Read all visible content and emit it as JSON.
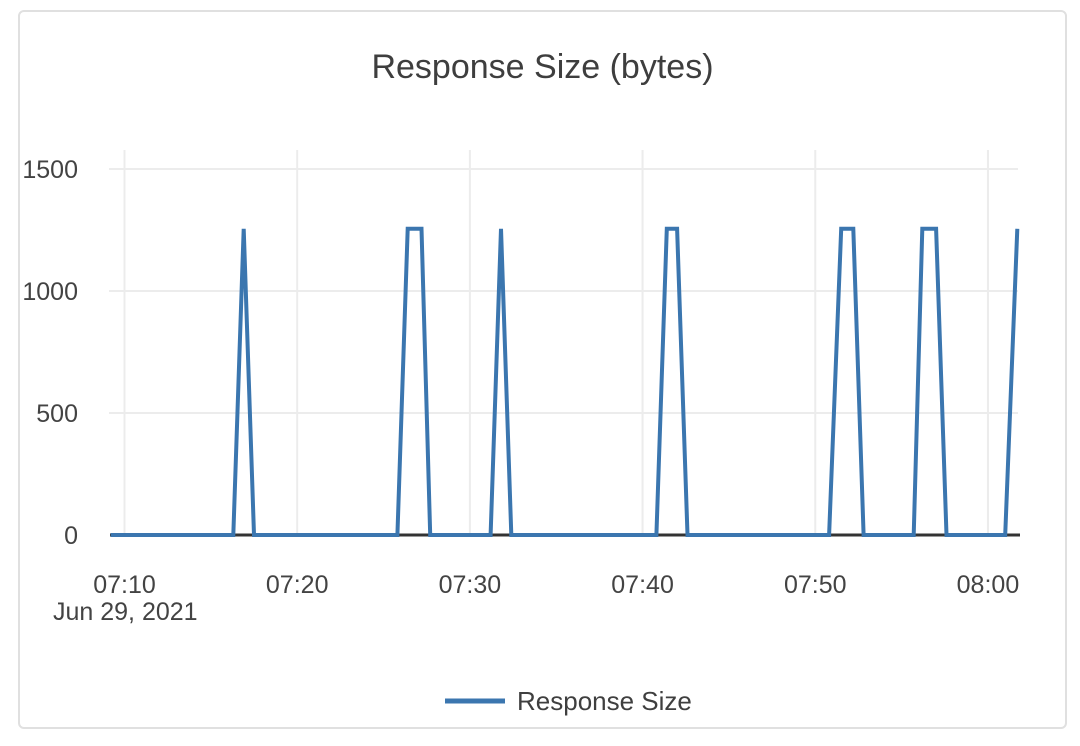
{
  "chart_data": {
    "type": "line",
    "title": "Response Size (bytes)",
    "x_axis": {
      "date_label": "Jun 29, 2021",
      "unit": "minutes after 07:00, Jun 29 2021",
      "range": [
        9.16,
        61.74
      ],
      "ticks": [
        {
          "t": 10,
          "label": "07:10"
        },
        {
          "t": 20,
          "label": "07:20"
        },
        {
          "t": 30,
          "label": "07:30"
        },
        {
          "t": 40,
          "label": "07:40"
        },
        {
          "t": 50,
          "label": "07:50"
        },
        {
          "t": 60,
          "label": "08:00"
        }
      ]
    },
    "y_axis": {
      "ticks": [
        0,
        500,
        1000,
        1500
      ],
      "range": [
        0,
        1578
      ]
    },
    "grid": true,
    "legend": {
      "position": "bottom",
      "entries": [
        {
          "label": "Response Size",
          "color": "#3b76af"
        }
      ]
    },
    "series": [
      {
        "name": "Response Size",
        "color": "#3b76af",
        "points": [
          [
            9.2,
            0
          ],
          [
            16.3,
            0
          ],
          [
            16.9,
            1255
          ],
          [
            17.5,
            0
          ],
          [
            25.8,
            0
          ],
          [
            26.4,
            1255
          ],
          [
            27.2,
            1255
          ],
          [
            27.7,
            0
          ],
          [
            31.2,
            0
          ],
          [
            31.8,
            1255
          ],
          [
            32.4,
            0
          ],
          [
            40.8,
            0
          ],
          [
            41.4,
            1255
          ],
          [
            42.0,
            1255
          ],
          [
            42.6,
            0
          ],
          [
            50.8,
            0
          ],
          [
            51.5,
            1255
          ],
          [
            52.2,
            1255
          ],
          [
            52.8,
            0
          ],
          [
            55.7,
            0
          ],
          [
            56.2,
            1255
          ],
          [
            57.0,
            1255
          ],
          [
            57.6,
            0
          ],
          [
            61.0,
            0
          ],
          [
            61.7,
            1255
          ]
        ]
      }
    ]
  },
  "colors": {
    "series": "#3b76af",
    "grid": "#ececec",
    "zero_line": "#333333",
    "title_text": "#3e3e3e",
    "tick_text": "#434343",
    "card_border": "#e0e0e0",
    "background": "#ffffff"
  }
}
